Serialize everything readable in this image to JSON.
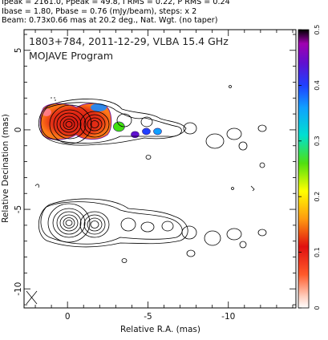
{
  "header": {
    "line1": "Ipeak = 2161.0, Ppeak = 49.8, I RMS = 0.22, P RMS = 0.24",
    "line2": "Ibase = 1.80, Pbase = 0.76 (mJy/beam), steps: x 2",
    "line3": "Beam: 0.73x0.66 mas at 20.2 deg., Nat. Wgt. (no taper)"
  },
  "chart_data": {
    "type": "heatmap",
    "title": "1803+784, 2011-12-29, VLBA 15.4 GHz",
    "subtitle": "MOJAVE Program",
    "xlabel": "Relative R.A. (mas)",
    "ylabel": "Relative Decination (mas)",
    "x_ticks": [
      "0",
      "-5",
      "-10"
    ],
    "y_ticks": [
      "5",
      "0",
      "-5",
      "-10"
    ],
    "xlim": [
      2.7,
      -14.2
    ],
    "ylim": [
      -11.2,
      6.3
    ],
    "x_tick_values": [
      0,
      -5,
      -10
    ],
    "y_tick_values": [
      5,
      0,
      -5,
      -10
    ],
    "colorbar": {
      "ticks": [
        "0.5",
        "0.4",
        "0.3",
        "0.2",
        "0.1",
        "0"
      ],
      "tick_values": [
        0.5,
        0.4,
        0.3,
        0.2,
        0.1,
        0
      ],
      "range": [
        0,
        0.5
      ]
    },
    "polarized_components": [
      {
        "x": 0.0,
        "y": 0.0,
        "value": 0.09
      },
      {
        "x": -1.6,
        "y": 0.0,
        "value": 0.08
      },
      {
        "x": -3.2,
        "y": 0.2,
        "value": 0.28
      },
      {
        "x": -4.2,
        "y": -0.3,
        "value": 0.45
      },
      {
        "x": -4.9,
        "y": -0.1,
        "value": 0.4
      },
      {
        "x": -5.6,
        "y": -0.1,
        "value": 0.35
      }
    ],
    "beam": {
      "major_mas": 0.73,
      "minor_mas": 0.66,
      "pa_deg": 20.2
    },
    "grid": false
  }
}
